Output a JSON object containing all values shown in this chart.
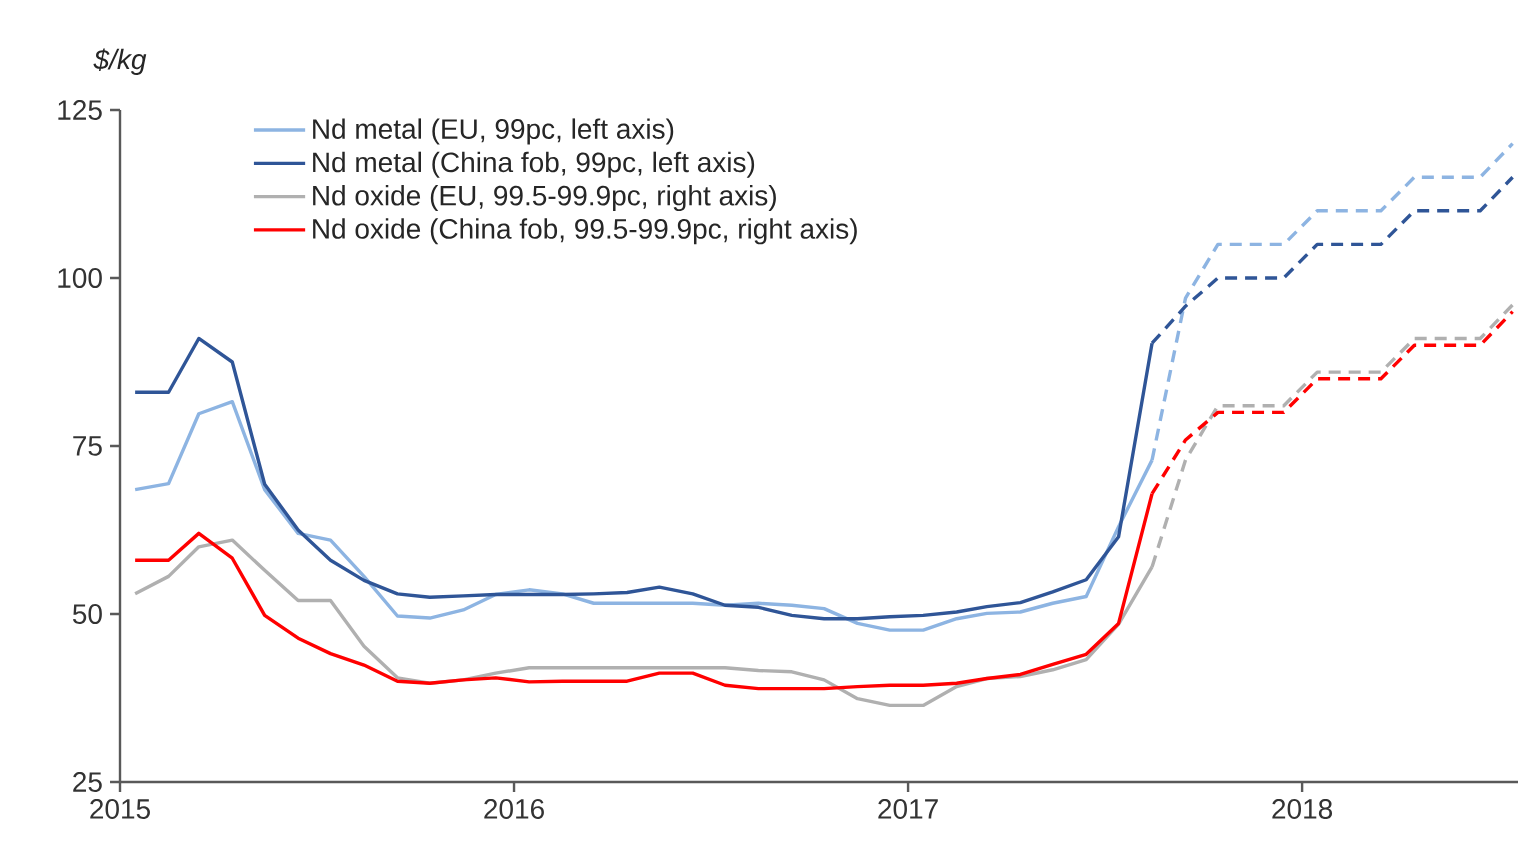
{
  "chart_data": {
    "type": "line",
    "ylabel": "$/kg",
    "xlim": [
      "2015-01-01",
      "2018-07-20"
    ],
    "xticks": [
      "2015",
      "2016",
      "2017",
      "2018"
    ],
    "ylim": [
      25,
      125
    ],
    "yticks": [
      25,
      50,
      75,
      100,
      125
    ],
    "legend": "top left",
    "series": [
      {
        "name": "Nd metal (EU, 99pc, left axis)",
        "color": "#8db4e2",
        "line_style": "solid",
        "x": [
          "2015-01-15",
          "2015-02-15",
          "2015-03-15",
          "2015-04-15",
          "2015-05-15",
          "2015-06-15",
          "2015-07-15",
          "2015-08-15",
          "2015-09-15",
          "2015-10-15",
          "2015-11-15",
          "2015-12-15",
          "2016-01-15",
          "2016-02-15",
          "2016-03-15",
          "2016-04-15",
          "2016-05-15",
          "2016-06-15",
          "2016-07-15",
          "2016-08-15",
          "2016-09-15",
          "2016-10-15",
          "2016-11-15",
          "2016-12-15",
          "2017-01-15",
          "2017-02-15",
          "2017-03-15",
          "2017-04-15",
          "2017-05-15",
          "2017-06-15",
          "2017-07-15",
          "2017-08-15"
        ],
        "values": [
          68.5,
          69.4,
          79.8,
          81.6,
          68.5,
          62,
          61,
          55.6,
          49.7,
          49.4,
          50.6,
          52.9,
          53.6,
          53,
          51.6,
          51.6,
          51.6,
          51.6,
          51.3,
          51.6,
          51.3,
          50.8,
          48.6,
          47.6,
          47.6,
          49.3,
          50.1,
          50.3,
          51.6,
          52.6,
          63,
          72.9
        ]
      },
      {
        "name": "Nd metal (China fob, 99pc, left axis)",
        "color": "#2f5597",
        "line_style": "solid",
        "x": [
          "2015-01-15",
          "2015-02-15",
          "2015-03-15",
          "2015-04-15",
          "2015-05-15",
          "2015-06-15",
          "2015-07-15",
          "2015-08-15",
          "2015-09-15",
          "2015-10-15",
          "2015-11-15",
          "2015-12-15",
          "2016-01-15",
          "2016-02-15",
          "2016-03-15",
          "2016-04-15",
          "2016-05-15",
          "2016-06-15",
          "2016-07-15",
          "2016-08-15",
          "2016-09-15",
          "2016-10-15",
          "2016-11-15",
          "2016-12-15",
          "2017-01-15",
          "2017-02-15",
          "2017-03-15",
          "2017-04-15",
          "2017-05-15",
          "2017-06-15",
          "2017-07-15",
          "2017-08-15"
        ],
        "values": [
          83,
          83,
          91,
          87.5,
          69.3,
          62.5,
          58,
          55,
          53,
          52.5,
          52.7,
          52.9,
          52.9,
          52.9,
          53,
          53.2,
          54,
          53,
          51.3,
          51,
          49.8,
          49.3,
          49.3,
          49.6,
          49.8,
          50.3,
          51.1,
          51.7,
          53.3,
          55.1,
          61.5,
          90.3
        ]
      },
      {
        "name": "Nd oxide (EU, 99.5-99.9pc, right axis)",
        "color": "#b0b0b0",
        "line_style": "solid",
        "x": [
          "2015-01-15",
          "2015-02-15",
          "2015-03-15",
          "2015-04-15",
          "2015-05-15",
          "2015-06-15",
          "2015-07-15",
          "2015-08-15",
          "2015-09-15",
          "2015-10-15",
          "2015-11-15",
          "2015-12-15",
          "2016-01-15",
          "2016-02-15",
          "2016-03-15",
          "2016-04-15",
          "2016-05-15",
          "2016-06-15",
          "2016-07-15",
          "2016-08-15",
          "2016-09-15",
          "2016-10-15",
          "2016-11-15",
          "2016-12-15",
          "2017-01-15",
          "2017-02-15",
          "2017-03-15",
          "2017-04-15",
          "2017-05-15",
          "2017-06-15",
          "2017-07-15",
          "2017-08-15"
        ],
        "values": [
          53,
          55.6,
          60,
          61,
          56.5,
          52,
          52,
          45.2,
          40.5,
          39.7,
          40.2,
          41.2,
          42,
          42,
          42,
          42,
          42,
          42,
          42,
          41.6,
          41.4,
          40.2,
          37.4,
          36.4,
          36.4,
          39.2,
          40.4,
          40.7,
          41.7,
          43.2,
          48.5,
          57
        ]
      },
      {
        "name": "Nd oxide (China fob, 99.5-99.9pc, right axis)",
        "color": "#ff0000",
        "line_style": "solid",
        "x": [
          "2015-01-15",
          "2015-02-15",
          "2015-03-15",
          "2015-04-15",
          "2015-05-15",
          "2015-06-15",
          "2015-07-15",
          "2015-08-15",
          "2015-09-15",
          "2015-10-15",
          "2015-11-15",
          "2015-12-15",
          "2016-01-15",
          "2016-02-15",
          "2016-03-15",
          "2016-04-15",
          "2016-05-15",
          "2016-06-15",
          "2016-07-15",
          "2016-08-15",
          "2016-09-15",
          "2016-10-15",
          "2016-11-15",
          "2016-12-15",
          "2017-01-15",
          "2017-02-15",
          "2017-03-15",
          "2017-04-15",
          "2017-05-15",
          "2017-06-15",
          "2017-07-15",
          "2017-08-15"
        ],
        "values": [
          58,
          58,
          62,
          58.3,
          49.8,
          46.4,
          44.1,
          42.4,
          40,
          39.7,
          40.2,
          40.5,
          39.9,
          40,
          40,
          40,
          41.2,
          41.2,
          39.4,
          38.9,
          38.9,
          38.9,
          39.2,
          39.4,
          39.4,
          39.7,
          40.4,
          41,
          42.5,
          44,
          48.6,
          67.9
        ]
      },
      {
        "color": "#8db4e2",
        "line_style": "dashed",
        "x": [
          "2017-08-15",
          "2017-09-15",
          "2017-10-15",
          "2017-11-15",
          "2017-12-15",
          "2018-01-15",
          "2018-02-15",
          "2018-03-15",
          "2018-04-15",
          "2018-05-15",
          "2018-06-15",
          "2018-07-15"
        ],
        "values": [
          72.9,
          97,
          105,
          105,
          105,
          110,
          110,
          110,
          115,
          115,
          115,
          120
        ]
      },
      {
        "color": "#2f5597",
        "line_style": "dashed",
        "x": [
          "2017-08-15",
          "2017-09-15",
          "2017-10-15",
          "2017-11-15",
          "2017-12-15",
          "2018-01-15",
          "2018-02-15",
          "2018-03-15",
          "2018-04-15",
          "2018-05-15",
          "2018-06-15",
          "2018-07-15"
        ],
        "values": [
          90.3,
          95.8,
          100,
          100,
          100,
          105,
          105,
          105,
          110,
          110,
          110,
          115
        ]
      },
      {
        "color": "#b0b0b0",
        "line_style": "dashed",
        "x": [
          "2017-08-15",
          "2017-09-15",
          "2017-10-15",
          "2017-11-15",
          "2017-12-15",
          "2018-01-15",
          "2018-02-15",
          "2018-03-15",
          "2018-04-15",
          "2018-05-15",
          "2018-06-15",
          "2018-07-15"
        ],
        "values": [
          57,
          72.9,
          81,
          81,
          81,
          86,
          86,
          86,
          91,
          91,
          91,
          96
        ]
      },
      {
        "color": "#ff0000",
        "line_style": "dashed",
        "x": [
          "2017-08-15",
          "2017-09-15",
          "2017-10-15",
          "2017-11-15",
          "2017-12-15",
          "2018-01-15",
          "2018-02-15",
          "2018-03-15",
          "2018-04-15",
          "2018-05-15",
          "2018-06-15",
          "2018-07-15"
        ],
        "values": [
          67.9,
          75.9,
          80,
          80,
          80,
          85,
          85,
          85,
          90,
          90,
          90,
          95
        ]
      }
    ]
  }
}
